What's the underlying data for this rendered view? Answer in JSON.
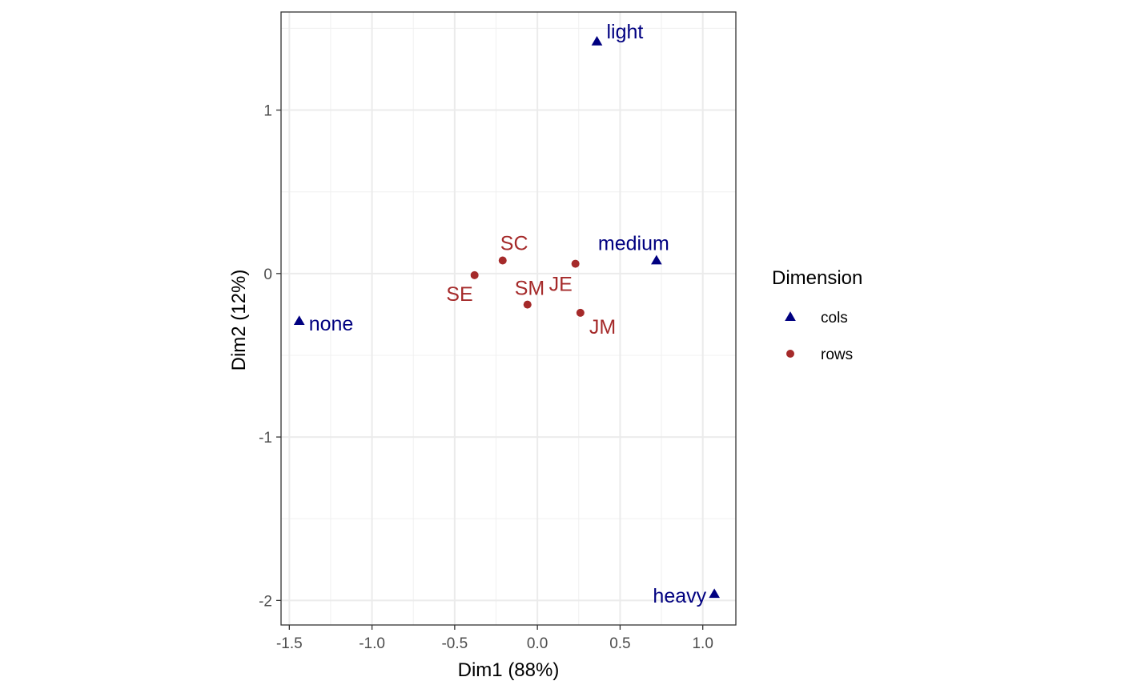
{
  "chart_data": {
    "type": "scatter",
    "xlabel": "Dim1 (88%)",
    "ylabel": "Dim2 (12%)",
    "xlim": [
      -1.55,
      1.2
    ],
    "ylim": [
      -2.15,
      1.6
    ],
    "x_ticks": [
      -1.5,
      -1.0,
      -0.5,
      0.0,
      0.5,
      1.0
    ],
    "x_tick_labels": [
      "-1.5",
      "-1.0",
      "-0.5",
      "0.0",
      "0.5",
      "1.0"
    ],
    "y_ticks": [
      -2,
      -1,
      0,
      1
    ],
    "y_tick_labels": [
      "-2",
      "-1",
      "0",
      "1"
    ],
    "grid": true,
    "legend": {
      "title": "Dimension",
      "position": "right",
      "entries": [
        {
          "name": "cols",
          "shape": "triangle",
          "color": "#000080"
        },
        {
          "name": "rows",
          "shape": "circle",
          "color": "#A52A2A"
        }
      ]
    },
    "series": [
      {
        "name": "cols",
        "color": "#000080",
        "shape": "triangle",
        "points": [
          {
            "label": "light",
            "x": 0.36,
            "y": 1.42
          },
          {
            "label": "medium",
            "x": 0.72,
            "y": 0.08
          },
          {
            "label": "none",
            "x": -1.44,
            "y": -0.29
          },
          {
            "label": "heavy",
            "x": 1.07,
            "y": -1.96
          }
        ]
      },
      {
        "name": "rows",
        "color": "#A52A2A",
        "shape": "circle",
        "points": [
          {
            "label": "SC",
            "x": -0.21,
            "y": 0.08
          },
          {
            "label": "SE",
            "x": -0.38,
            "y": -0.01
          },
          {
            "label": "SM",
            "x": -0.06,
            "y": -0.19
          },
          {
            "label": "JE",
            "x": 0.23,
            "y": 0.06
          },
          {
            "label": "JM",
            "x": 0.26,
            "y": -0.24
          }
        ]
      }
    ]
  }
}
